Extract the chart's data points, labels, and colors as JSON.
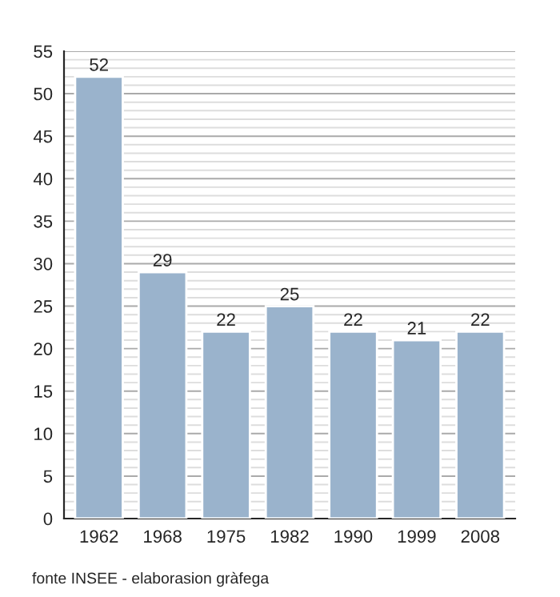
{
  "chart_data": {
    "type": "bar",
    "categories": [
      "1962",
      "1968",
      "1975",
      "1982",
      "1990",
      "1999",
      "2008"
    ],
    "values": [
      52,
      29,
      22,
      25,
      22,
      21,
      22
    ],
    "color": "#9ab3cc",
    "data_labels": true,
    "ylim": [
      0,
      55
    ],
    "yticks": [
      0,
      {
        "value": 1,
        "label": null
      },
      {
        "value": 2,
        "label": null
      },
      {
        "value": 3,
        "label": null
      },
      {
        "value": 4,
        "label": null
      },
      5,
      {
        "value": 6,
        "label": null
      },
      {
        "value": 7,
        "label": null
      },
      {
        "value": 8,
        "label": null
      },
      {
        "value": 9,
        "label": null
      },
      10,
      {
        "value": 11,
        "label": null
      },
      {
        "value": 12,
        "label": null
      },
      {
        "value": 13,
        "label": null
      },
      {
        "value": 14,
        "label": null
      },
      15,
      {
        "value": 16,
        "label": null
      },
      {
        "value": 17,
        "label": null
      },
      {
        "value": 18,
        "label": null
      },
      {
        "value": 19,
        "label": null
      },
      20,
      {
        "value": 21,
        "label": null
      },
      {
        "value": 22,
        "label": null
      },
      {
        "value": 23,
        "label": null
      },
      {
        "value": 24,
        "label": null
      },
      25,
      {
        "value": 26,
        "label": null
      },
      {
        "value": 27,
        "label": null
      },
      {
        "value": 28,
        "label": null
      },
      {
        "value": 29,
        "label": null
      },
      30,
      {
        "value": 31,
        "label": null
      },
      {
        "value": 32,
        "label": null
      },
      {
        "value": 33,
        "label": null
      },
      {
        "value": 34,
        "label": null
      },
      35,
      {
        "value": 36,
        "label": null
      },
      {
        "value": 37,
        "label": null
      },
      {
        "value": 38,
        "label": null
      },
      {
        "value": 39,
        "label": null
      },
      40,
      {
        "value": 41,
        "label": null
      },
      {
        "value": 42,
        "label": null
      },
      {
        "value": 43,
        "label": null
      },
      {
        "value": 44,
        "label": null
      },
      45,
      {
        "value": 46,
        "label": null
      },
      {
        "value": 47,
        "label": null
      },
      {
        "value": 48,
        "label": null
      },
      {
        "value": 49,
        "label": null
      },
      50,
      {
        "value": 51,
        "label": null
      },
      {
        "value": 52,
        "label": null
      },
      {
        "value": 53,
        "label": null
      },
      {
        "value": 54,
        "label": null
      },
      55
    ],
    "grid": "y",
    "legend": false,
    "annotations": [
      "fonte INSEE - elaborasion gràfega"
    ]
  }
}
